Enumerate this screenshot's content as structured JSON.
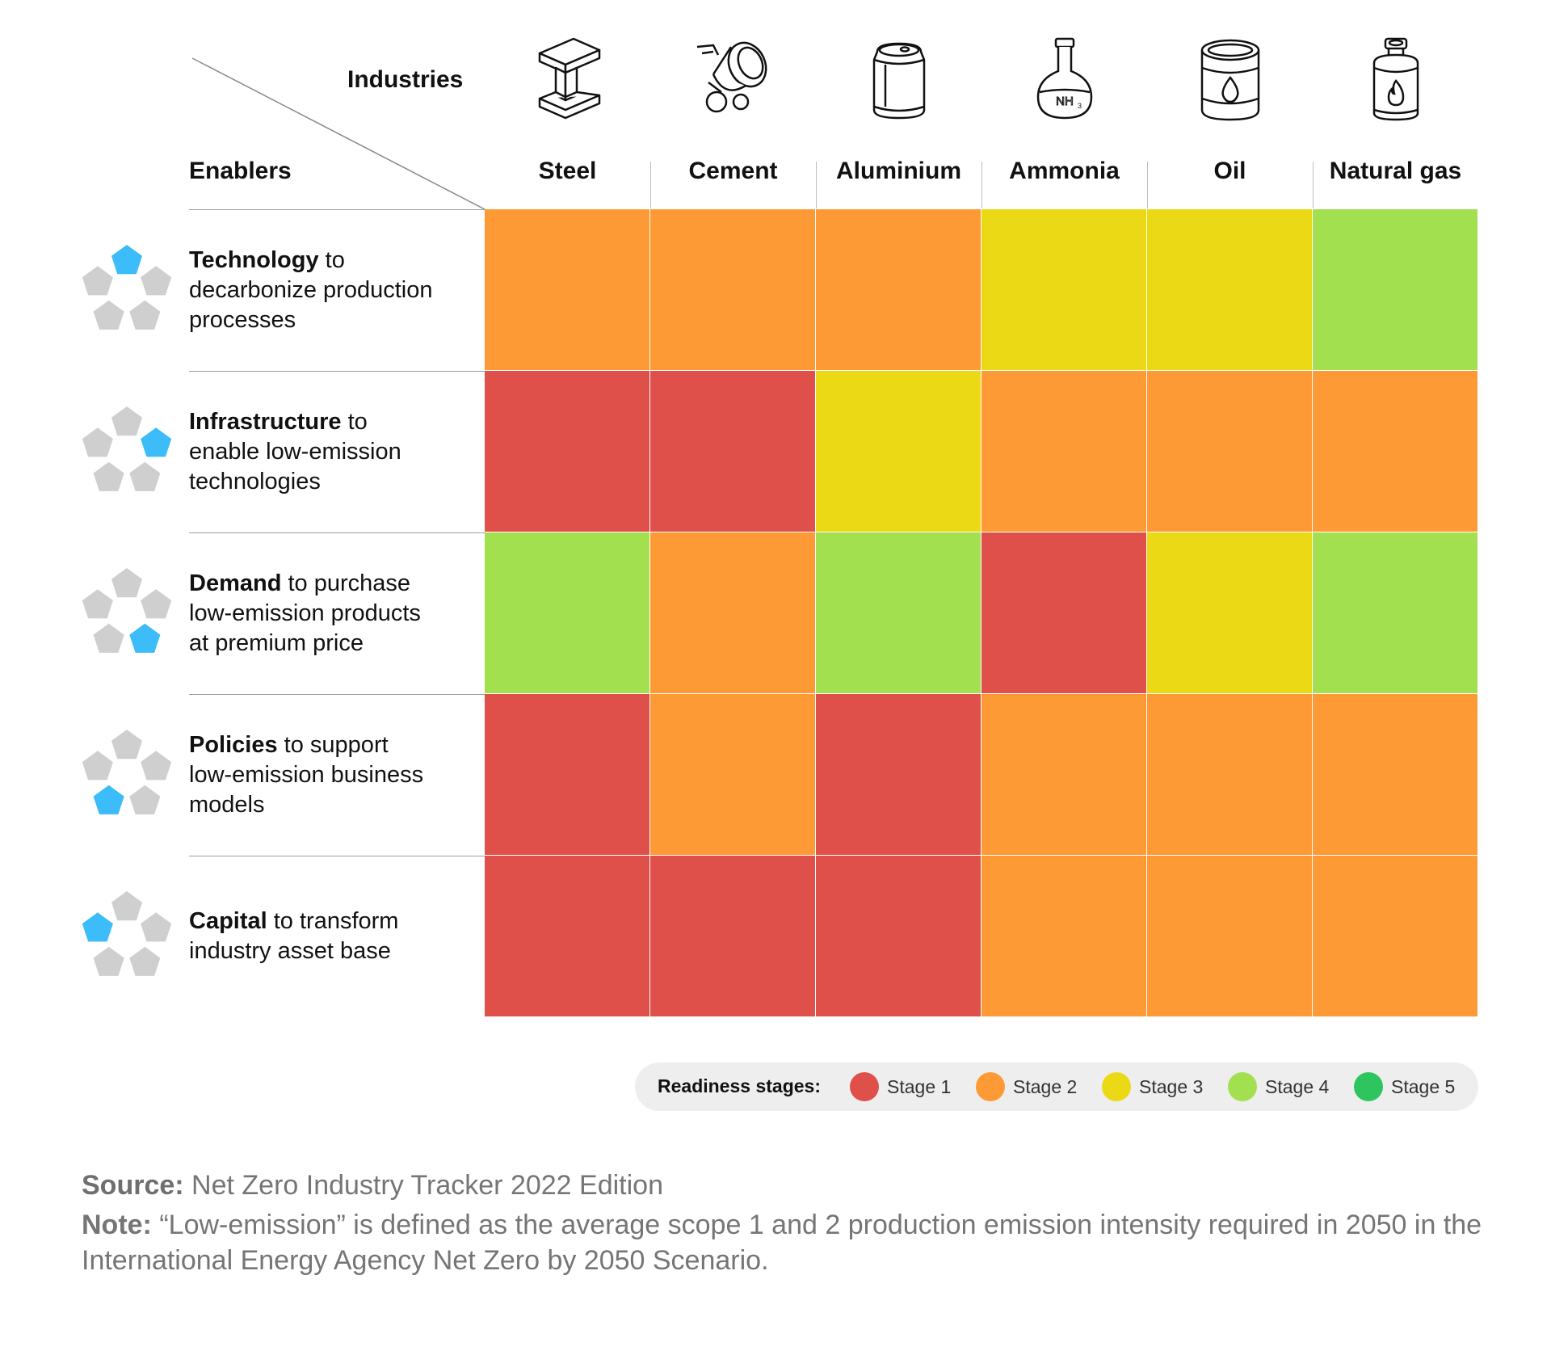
{
  "header": {
    "industries_label": "Industries",
    "enablers_label": "Enablers"
  },
  "chart_data": {
    "type": "heatmap",
    "columns": [
      {
        "label": "Steel",
        "icon": "steel-beam-icon"
      },
      {
        "label": "Cement",
        "icon": "cement-mixer-icon"
      },
      {
        "label": "Aluminium",
        "icon": "aluminium-can-icon"
      },
      {
        "label": "Ammonia",
        "icon": "ammonia-flask-icon",
        "icon_text": "NH3"
      },
      {
        "label": "Oil",
        "icon": "oil-barrel-icon"
      },
      {
        "label": "Natural gas",
        "icon": "gas-cylinder-icon"
      }
    ],
    "rows": [
      {
        "bold": "Technology",
        "rest": " to",
        "lines": [
          "decarbonize production",
          "processes"
        ],
        "highlight": 0,
        "values": [
          2,
          2,
          2,
          3,
          3,
          4
        ]
      },
      {
        "bold": "Infrastructure",
        "rest": " to",
        "lines": [
          "enable low-emission",
          "technologies"
        ],
        "highlight": 1,
        "values": [
          1,
          1,
          3,
          2,
          2,
          2
        ]
      },
      {
        "bold": "Demand",
        "rest": " to purchase",
        "lines": [
          "low-emission products",
          "at premium price"
        ],
        "highlight": 2,
        "values": [
          4,
          2,
          4,
          1,
          3,
          4
        ]
      },
      {
        "bold": "Policies",
        "rest": " to support",
        "lines": [
          "low-emission business",
          "models"
        ],
        "highlight": 3,
        "values": [
          1,
          2,
          1,
          2,
          2,
          2
        ]
      },
      {
        "bold": "Capital",
        "rest": " to transform",
        "lines": [
          "industry asset base"
        ],
        "highlight": 4,
        "values": [
          1,
          1,
          1,
          2,
          2,
          2
        ]
      }
    ],
    "legend": {
      "title": "Readiness stages:",
      "stages": [
        {
          "label": "Stage 1",
          "value": 1,
          "color": "#e0504b"
        },
        {
          "label": "Stage 2",
          "value": 2,
          "color": "#fd9a35"
        },
        {
          "label": "Stage 3",
          "value": 3,
          "color": "#ecd915"
        },
        {
          "label": "Stage 4",
          "value": 4,
          "color": "#a2e04f"
        },
        {
          "label": "Stage 5",
          "value": 5,
          "color": "#2ec45e"
        }
      ]
    }
  },
  "colors": {
    "highlight": "#3cbcf8",
    "pentagon_gray": "#cfcfcf"
  },
  "footer": {
    "source_label": "Source:",
    "source_text": " Net Zero Industry Tracker 2022 Edition",
    "note_label": "Note:",
    "note_text": " “Low-emission” is defined as the average scope 1 and 2 production emission intensity required in 2050 in the International Energy Agency Net Zero by 2050 Scenario."
  }
}
